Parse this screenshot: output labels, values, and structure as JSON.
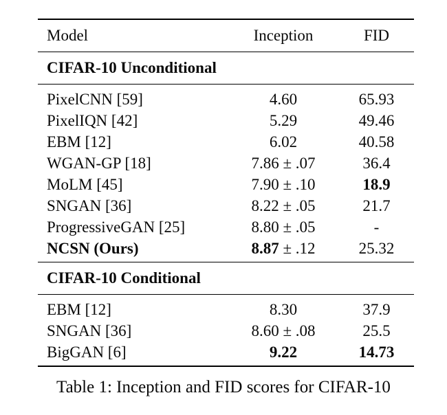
{
  "caption": "Table 1: Inception and FID scores for CIFAR-10",
  "table": {
    "columns": [
      "Model",
      "Inception",
      "FID"
    ],
    "sections": [
      {
        "title": "CIFAR-10 Unconditional",
        "rows": [
          {
            "cells": [
              [
                {
                  "t": "PixelCNN [59]",
                  "b": false
                }
              ],
              [
                {
                  "t": "4.60",
                  "b": false
                }
              ],
              [
                {
                  "t": "65.93",
                  "b": false
                }
              ]
            ]
          },
          {
            "cells": [
              [
                {
                  "t": "PixelIQN [42]",
                  "b": false
                }
              ],
              [
                {
                  "t": "5.29",
                  "b": false
                }
              ],
              [
                {
                  "t": "49.46",
                  "b": false
                }
              ]
            ]
          },
          {
            "cells": [
              [
                {
                  "t": "EBM [12]",
                  "b": false
                }
              ],
              [
                {
                  "t": "6.02",
                  "b": false
                }
              ],
              [
                {
                  "t": "40.58",
                  "b": false
                }
              ]
            ]
          },
          {
            "cells": [
              [
                {
                  "t": "WGAN-GP [18]",
                  "b": false
                }
              ],
              [
                {
                  "t": "7.86 ± .07",
                  "b": false
                }
              ],
              [
                {
                  "t": "36.4",
                  "b": false
                }
              ]
            ]
          },
          {
            "cells": [
              [
                {
                  "t": "MoLM [45]",
                  "b": false
                }
              ],
              [
                {
                  "t": "7.90 ± .10",
                  "b": false
                }
              ],
              [
                {
                  "t": "18.9",
                  "b": true
                }
              ]
            ]
          },
          {
            "cells": [
              [
                {
                  "t": "SNGAN [36]",
                  "b": false
                }
              ],
              [
                {
                  "t": "8.22 ± .05",
                  "b": false
                }
              ],
              [
                {
                  "t": "21.7",
                  "b": false
                }
              ]
            ]
          },
          {
            "cells": [
              [
                {
                  "t": "ProgressiveGAN [25]",
                  "b": false
                }
              ],
              [
                {
                  "t": "8.80 ± .05",
                  "b": false
                }
              ],
              [
                {
                  "t": "-",
                  "b": false
                }
              ]
            ]
          },
          {
            "cells": [
              [
                {
                  "t": "NCSN (Ours)",
                  "b": true
                }
              ],
              [
                {
                  "t": "8.87",
                  "b": true
                },
                {
                  "t": " ± .12",
                  "b": false
                }
              ],
              [
                {
                  "t": "25.32",
                  "b": false
                }
              ]
            ]
          }
        ]
      },
      {
        "title": "CIFAR-10 Conditional",
        "rows": [
          {
            "cells": [
              [
                {
                  "t": "EBM [12]",
                  "b": false
                }
              ],
              [
                {
                  "t": "8.30",
                  "b": false
                }
              ],
              [
                {
                  "t": "37.9",
                  "b": false
                }
              ]
            ]
          },
          {
            "cells": [
              [
                {
                  "t": "SNGAN [36]",
                  "b": false
                }
              ],
              [
                {
                  "t": "8.60 ± .08",
                  "b": false
                }
              ],
              [
                {
                  "t": "25.5",
                  "b": false
                }
              ]
            ]
          },
          {
            "cells": [
              [
                {
                  "t": "BigGAN [6]",
                  "b": false
                }
              ],
              [
                {
                  "t": "9.22",
                  "b": true
                }
              ],
              [
                {
                  "t": "14.73",
                  "b": true
                }
              ]
            ]
          }
        ]
      }
    ]
  }
}
